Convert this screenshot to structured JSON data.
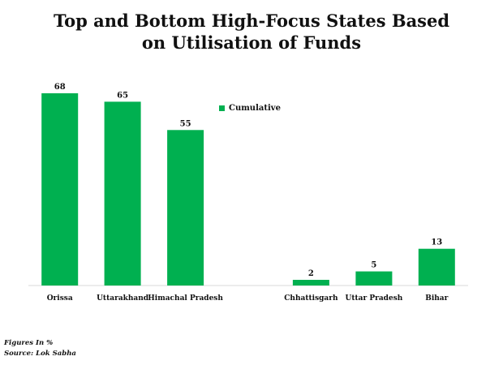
{
  "chart_data": {
    "type": "bar",
    "title_lines": [
      "Top and Bottom High-Focus States Based",
      "on Utilisation of Funds"
    ],
    "legend": "Cumulative",
    "series_color": "#00b050",
    "categories": [
      "Orissa",
      "Uttarakhand",
      "Himachal Pradesh",
      "Chhattisgarh",
      "Uttar Pradesh",
      "Bihar"
    ],
    "series": [
      {
        "name": "Cumulative",
        "values": [
          68,
          65,
          55,
          2,
          5,
          13
        ]
      }
    ],
    "data_labels": [
      "68",
      "65",
      "55",
      "2",
      "5",
      "13"
    ],
    "ylim": [
      0,
      70
    ]
  },
  "footer": {
    "note": "Figures In %",
    "source": "Source: Lok Sabha"
  }
}
